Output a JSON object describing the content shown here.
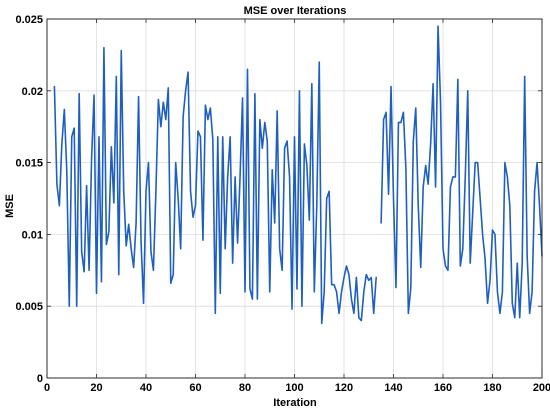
{
  "chart_data": {
    "type": "line",
    "title": "MSE over Iterations",
    "xlabel": "Iteration",
    "ylabel": "MSE",
    "xlim": [
      0,
      200
    ],
    "ylim": [
      0,
      0.025
    ],
    "x_ticks": [
      0,
      20,
      40,
      60,
      80,
      100,
      120,
      140,
      160,
      180,
      200
    ],
    "x_tick_labels": [
      "0",
      "20",
      "40",
      "60",
      "80",
      "100",
      "120",
      "140",
      "160",
      "180",
      "200"
    ],
    "y_ticks": [
      0,
      0.005,
      0.01,
      0.015,
      0.02,
      0.025
    ],
    "y_tick_labels": [
      "0",
      "0.005",
      "0.01",
      "0.015",
      "0.02",
      "0.025"
    ],
    "grid": true,
    "series": [
      {
        "color": "#1f5fbf",
        "x": [
          3,
          4,
          5,
          6,
          7,
          8,
          9,
          10,
          11,
          12,
          13,
          14,
          15,
          16,
          17,
          18,
          19,
          20,
          21,
          22,
          23,
          24,
          25,
          26,
          27,
          28,
          29,
          30,
          31,
          32,
          33,
          34,
          35,
          36,
          37,
          38,
          39,
          40,
          41,
          42,
          43,
          44,
          45,
          46,
          47,
          48,
          49,
          50,
          51,
          52,
          53,
          54,
          55,
          56,
          57,
          58,
          59,
          60,
          61,
          62,
          63,
          64,
          65,
          66,
          67,
          68,
          69,
          70,
          71,
          72,
          73,
          74,
          75,
          76,
          77,
          78,
          79,
          80,
          81,
          82,
          83,
          84,
          85,
          86,
          87,
          88,
          89,
          90,
          91,
          92,
          93,
          94,
          95,
          96,
          97,
          98,
          99,
          100,
          101,
          102,
          103,
          104,
          105,
          106,
          107,
          108,
          109,
          110,
          111,
          112,
          113,
          114,
          115,
          116,
          117,
          118,
          119,
          120,
          121,
          122,
          123,
          124,
          125,
          126,
          127,
          128,
          129,
          130,
          131,
          132,
          133
        ],
        "y": [
          0.0203,
          0.0135,
          0.012,
          0.0163,
          0.0187,
          0.0144,
          0.005,
          0.0168,
          0.0174,
          0.005,
          0.0198,
          0.0088,
          0.0074,
          0.0134,
          0.0075,
          0.0152,
          0.0197,
          0.0059,
          0.0168,
          0.0067,
          0.023,
          0.0093,
          0.0102,
          0.0161,
          0.0122,
          0.021,
          0.0072,
          0.0228,
          0.013,
          0.0092,
          0.0107,
          0.009,
          0.0077,
          0.0108,
          0.0196,
          0.0095,
          0.0052,
          0.013,
          0.015,
          0.0088,
          0.0075,
          0.013,
          0.0194,
          0.0175,
          0.0192,
          0.018,
          0.0202,
          0.0066,
          0.0072,
          0.015,
          0.0125,
          0.009,
          0.0182,
          0.02,
          0.0213,
          0.013,
          0.0112,
          0.012,
          0.0172,
          0.0168,
          0.0096,
          0.019,
          0.018,
          0.0188,
          0.0166,
          0.0045,
          0.0168,
          0.0059,
          0.0168,
          0.009,
          0.014,
          0.0168,
          0.008,
          0.014,
          0.0094,
          0.014,
          0.0195,
          0.006,
          0.0215,
          0.0062,
          0.0055,
          0.0198,
          0.0055,
          0.018,
          0.016,
          0.0178,
          0.0165,
          0.006,
          0.0145,
          0.0108,
          0.0186,
          0.009,
          0.0075,
          0.016,
          0.0165,
          0.014,
          0.0048,
          0.0168,
          0.0062,
          0.02,
          0.005,
          0.0163,
          0.0148,
          0.011,
          0.0205,
          0.006,
          0.012,
          0.022,
          0.0038,
          0.006,
          0.0125,
          0.013,
          0.0065,
          0.0065,
          0.006,
          0.0045,
          0.006,
          0.007,
          0.0078,
          0.0072,
          0.0055,
          0.0045,
          0.007,
          0.0042,
          0.004,
          0.006,
          0.0072,
          0.0068,
          0.007,
          0.0045,
          0.007
        ]
      },
      {
        "color": "#1f5fbf",
        "x": [
          135,
          136,
          137,
          138,
          139,
          140,
          141,
          142,
          143,
          144,
          145,
          146,
          147,
          148,
          149,
          150,
          151,
          152,
          153,
          154,
          155,
          156,
          157,
          158,
          159,
          160,
          161,
          162,
          163,
          164,
          165,
          166,
          167,
          168,
          169,
          170,
          171,
          172,
          173,
          174,
          175,
          176,
          177,
          178,
          179,
          180,
          181,
          182,
          183,
          184,
          185,
          186,
          187,
          188,
          189,
          190,
          191,
          192,
          193,
          194,
          195,
          196,
          197,
          198,
          199,
          200
        ],
        "y": [
          0.0108,
          0.018,
          0.0185,
          0.0128,
          0.0203,
          0.0125,
          0.0063,
          0.0178,
          0.0178,
          0.0185,
          0.0146,
          0.0045,
          0.0063,
          0.0165,
          0.0188,
          0.012,
          0.0077,
          0.0133,
          0.0148,
          0.0135,
          0.0163,
          0.0205,
          0.0133,
          0.0245,
          0.0192,
          0.009,
          0.0078,
          0.0075,
          0.0133,
          0.014,
          0.014,
          0.0208,
          0.0078,
          0.009,
          0.014,
          0.02,
          0.008,
          0.0115,
          0.015,
          0.015,
          0.0125,
          0.01,
          0.0083,
          0.0052,
          0.0068,
          0.0103,
          0.01,
          0.006,
          0.0045,
          0.006,
          0.015,
          0.014,
          0.012,
          0.0052,
          0.0042,
          0.008,
          0.0042,
          0.008,
          0.021,
          0.0085,
          0.0045,
          0.006,
          0.013,
          0.015,
          0.012,
          0.0085
        ]
      }
    ]
  }
}
